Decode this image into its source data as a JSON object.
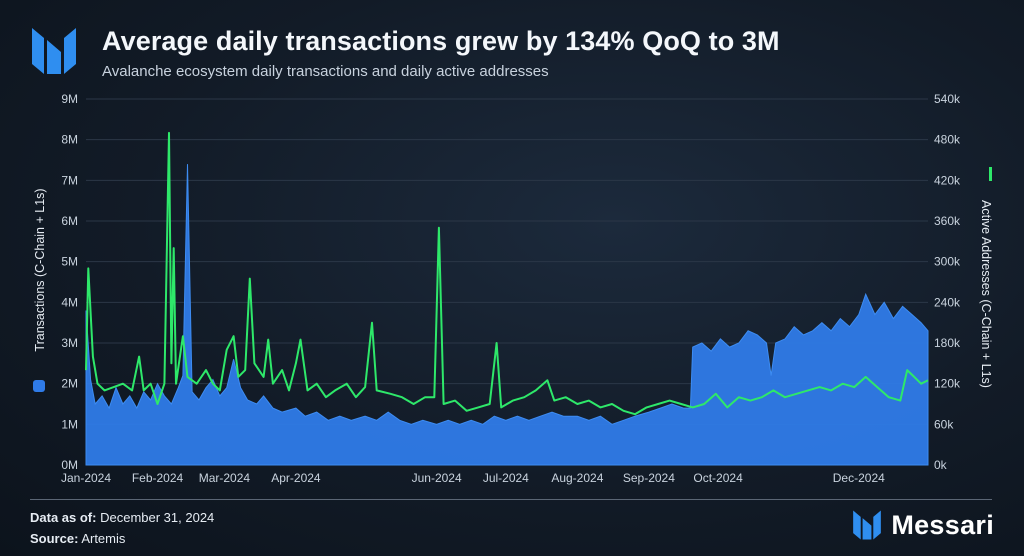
{
  "header": {
    "title": "Average daily transactions grew by 134% QoQ to 3M",
    "subtitle": "Avalanche ecosystem daily transactions and daily active addresses"
  },
  "footer": {
    "data_as_of_label": "Data as of:",
    "data_as_of_value": "December 31, 2024",
    "source_label": "Source:",
    "source_value": "Artemis",
    "brand": "Messari"
  },
  "colors": {
    "transactions": "#2f7be8",
    "active_addresses": "#2ee86a",
    "brand_blue": "#2f8ef0"
  },
  "chart_data": {
    "type": "area",
    "title": "Average daily transactions grew by 134% QoQ to 3M",
    "subtitle": "Avalanche ecosystem daily transactions and daily active addresses",
    "x_tick_labels": [
      "Jan-2024",
      "Feb-2024",
      "Mar-2024",
      "Apr-2024",
      "Jun-2024",
      "Jul-2024",
      "Aug-2024",
      "Sep-2024",
      "Oct-2024",
      "Dec-2024"
    ],
    "x_tick_dates": [
      "2024-01-01",
      "2024-02-01",
      "2024-03-01",
      "2024-04-01",
      "2024-06-01",
      "2024-07-01",
      "2024-08-01",
      "2024-09-01",
      "2024-10-01",
      "2024-12-01"
    ],
    "x_range": [
      "2024-01-01",
      "2024-12-31"
    ],
    "y_left": {
      "label": "Transactions (C-Chain + L1s)",
      "range": [
        0,
        9000000
      ],
      "tick_labels": [
        "0M",
        "1M",
        "2M",
        "3M",
        "4M",
        "5M",
        "6M",
        "7M",
        "8M",
        "9M"
      ]
    },
    "y_right": {
      "label": "Active Addresses (C-Chain + L1s)",
      "range": [
        0,
        540000
      ],
      "tick_labels": [
        "0k",
        "60k",
        "120k",
        "180k",
        "240k",
        "300k",
        "360k",
        "420k",
        "480k",
        "540k"
      ]
    },
    "grid": true,
    "series": [
      {
        "name": "Transactions (C-Chain + L1s)",
        "axis": "left",
        "style": "area",
        "points": [
          [
            "2024-01-01",
            3800000
          ],
          [
            "2024-01-03",
            2100000
          ],
          [
            "2024-01-05",
            1500000
          ],
          [
            "2024-01-08",
            1700000
          ],
          [
            "2024-01-11",
            1400000
          ],
          [
            "2024-01-14",
            1900000
          ],
          [
            "2024-01-17",
            1500000
          ],
          [
            "2024-01-20",
            1700000
          ],
          [
            "2024-01-23",
            1400000
          ],
          [
            "2024-01-26",
            1800000
          ],
          [
            "2024-01-29",
            1600000
          ],
          [
            "2024-02-01",
            2000000
          ],
          [
            "2024-02-04",
            1700000
          ],
          [
            "2024-02-07",
            1500000
          ],
          [
            "2024-02-10",
            1900000
          ],
          [
            "2024-02-12",
            2200000
          ],
          [
            "2024-02-14",
            7400000
          ],
          [
            "2024-02-16",
            1800000
          ],
          [
            "2024-02-19",
            1600000
          ],
          [
            "2024-02-22",
            1900000
          ],
          [
            "2024-02-25",
            2100000
          ],
          [
            "2024-02-28",
            1700000
          ],
          [
            "2024-03-02",
            1900000
          ],
          [
            "2024-03-05",
            2600000
          ],
          [
            "2024-03-08",
            1900000
          ],
          [
            "2024-03-11",
            1600000
          ],
          [
            "2024-03-15",
            1500000
          ],
          [
            "2024-03-18",
            1700000
          ],
          [
            "2024-03-22",
            1400000
          ],
          [
            "2024-03-26",
            1300000
          ],
          [
            "2024-04-01",
            1400000
          ],
          [
            "2024-04-05",
            1200000
          ],
          [
            "2024-04-10",
            1300000
          ],
          [
            "2024-04-15",
            1100000
          ],
          [
            "2024-04-20",
            1200000
          ],
          [
            "2024-04-25",
            1100000
          ],
          [
            "2024-05-01",
            1200000
          ],
          [
            "2024-05-06",
            1100000
          ],
          [
            "2024-05-11",
            1300000
          ],
          [
            "2024-05-16",
            1100000
          ],
          [
            "2024-05-21",
            1000000
          ],
          [
            "2024-05-26",
            1100000
          ],
          [
            "2024-06-01",
            1000000
          ],
          [
            "2024-06-06",
            1100000
          ],
          [
            "2024-06-11",
            1000000
          ],
          [
            "2024-06-16",
            1100000
          ],
          [
            "2024-06-21",
            1000000
          ],
          [
            "2024-06-26",
            1200000
          ],
          [
            "2024-07-01",
            1100000
          ],
          [
            "2024-07-06",
            1200000
          ],
          [
            "2024-07-11",
            1100000
          ],
          [
            "2024-07-16",
            1200000
          ],
          [
            "2024-07-21",
            1300000
          ],
          [
            "2024-07-26",
            1200000
          ],
          [
            "2024-08-01",
            1200000
          ],
          [
            "2024-08-06",
            1100000
          ],
          [
            "2024-08-11",
            1200000
          ],
          [
            "2024-08-16",
            1000000
          ],
          [
            "2024-08-21",
            1100000
          ],
          [
            "2024-08-26",
            1200000
          ],
          [
            "2024-09-01",
            1300000
          ],
          [
            "2024-09-06",
            1400000
          ],
          [
            "2024-09-11",
            1500000
          ],
          [
            "2024-09-16",
            1400000
          ],
          [
            "2024-09-19",
            1400000
          ],
          [
            "2024-09-20",
            2900000
          ],
          [
            "2024-09-24",
            3000000
          ],
          [
            "2024-09-28",
            2800000
          ],
          [
            "2024-10-02",
            3100000
          ],
          [
            "2024-10-06",
            2900000
          ],
          [
            "2024-10-10",
            3000000
          ],
          [
            "2024-10-14",
            3300000
          ],
          [
            "2024-10-18",
            3200000
          ],
          [
            "2024-10-22",
            3000000
          ],
          [
            "2024-10-24",
            2200000
          ],
          [
            "2024-10-26",
            3000000
          ],
          [
            "2024-10-30",
            3100000
          ],
          [
            "2024-11-03",
            3400000
          ],
          [
            "2024-11-07",
            3200000
          ],
          [
            "2024-11-11",
            3300000
          ],
          [
            "2024-11-15",
            3500000
          ],
          [
            "2024-11-19",
            3300000
          ],
          [
            "2024-11-23",
            3600000
          ],
          [
            "2024-11-27",
            3400000
          ],
          [
            "2024-12-01",
            3700000
          ],
          [
            "2024-12-04",
            4200000
          ],
          [
            "2024-12-08",
            3700000
          ],
          [
            "2024-12-12",
            4000000
          ],
          [
            "2024-12-16",
            3600000
          ],
          [
            "2024-12-20",
            3900000
          ],
          [
            "2024-12-24",
            3700000
          ],
          [
            "2024-12-28",
            3500000
          ],
          [
            "2024-12-31",
            3300000
          ]
        ]
      },
      {
        "name": "Active Addresses (C-Chain + L1s)",
        "axis": "right",
        "style": "line",
        "points": [
          [
            "2024-01-01",
            140000
          ],
          [
            "2024-01-02",
            290000
          ],
          [
            "2024-01-04",
            160000
          ],
          [
            "2024-01-06",
            120000
          ],
          [
            "2024-01-09",
            110000
          ],
          [
            "2024-01-13",
            115000
          ],
          [
            "2024-01-17",
            120000
          ],
          [
            "2024-01-21",
            110000
          ],
          [
            "2024-01-24",
            160000
          ],
          [
            "2024-01-26",
            110000
          ],
          [
            "2024-01-29",
            120000
          ],
          [
            "2024-02-01",
            90000
          ],
          [
            "2024-02-04",
            120000
          ],
          [
            "2024-02-06",
            490000
          ],
          [
            "2024-02-07",
            150000
          ],
          [
            "2024-02-08",
            320000
          ],
          [
            "2024-02-09",
            120000
          ],
          [
            "2024-02-12",
            190000
          ],
          [
            "2024-02-14",
            130000
          ],
          [
            "2024-02-18",
            120000
          ],
          [
            "2024-02-22",
            140000
          ],
          [
            "2024-02-25",
            120000
          ],
          [
            "2024-02-28",
            110000
          ],
          [
            "2024-03-02",
            170000
          ],
          [
            "2024-03-05",
            190000
          ],
          [
            "2024-03-07",
            130000
          ],
          [
            "2024-03-10",
            140000
          ],
          [
            "2024-03-12",
            275000
          ],
          [
            "2024-03-14",
            150000
          ],
          [
            "2024-03-18",
            130000
          ],
          [
            "2024-03-20",
            185000
          ],
          [
            "2024-03-22",
            120000
          ],
          [
            "2024-03-26",
            140000
          ],
          [
            "2024-03-29",
            110000
          ],
          [
            "2024-04-01",
            150000
          ],
          [
            "2024-04-03",
            185000
          ],
          [
            "2024-04-06",
            110000
          ],
          [
            "2024-04-10",
            120000
          ],
          [
            "2024-04-14",
            100000
          ],
          [
            "2024-04-18",
            110000
          ],
          [
            "2024-04-23",
            120000
          ],
          [
            "2024-04-27",
            100000
          ],
          [
            "2024-05-01",
            115000
          ],
          [
            "2024-05-04",
            210000
          ],
          [
            "2024-05-06",
            110000
          ],
          [
            "2024-05-12",
            105000
          ],
          [
            "2024-05-17",
            100000
          ],
          [
            "2024-05-22",
            90000
          ],
          [
            "2024-05-27",
            100000
          ],
          [
            "2024-05-31",
            100000
          ],
          [
            "2024-06-02",
            350000
          ],
          [
            "2024-06-04",
            90000
          ],
          [
            "2024-06-09",
            95000
          ],
          [
            "2024-06-14",
            80000
          ],
          [
            "2024-06-19",
            85000
          ],
          [
            "2024-06-24",
            90000
          ],
          [
            "2024-06-27",
            180000
          ],
          [
            "2024-06-29",
            85000
          ],
          [
            "2024-07-04",
            95000
          ],
          [
            "2024-07-09",
            100000
          ],
          [
            "2024-07-14",
            110000
          ],
          [
            "2024-07-19",
            125000
          ],
          [
            "2024-07-22",
            95000
          ],
          [
            "2024-07-27",
            100000
          ],
          [
            "2024-08-01",
            90000
          ],
          [
            "2024-08-06",
            95000
          ],
          [
            "2024-08-11",
            85000
          ],
          [
            "2024-08-16",
            90000
          ],
          [
            "2024-08-21",
            80000
          ],
          [
            "2024-08-26",
            75000
          ],
          [
            "2024-08-31",
            85000
          ],
          [
            "2024-09-05",
            90000
          ],
          [
            "2024-09-10",
            95000
          ],
          [
            "2024-09-15",
            90000
          ],
          [
            "2024-09-20",
            85000
          ],
          [
            "2024-09-25",
            90000
          ],
          [
            "2024-09-30",
            105000
          ],
          [
            "2024-10-05",
            85000
          ],
          [
            "2024-10-10",
            100000
          ],
          [
            "2024-10-15",
            95000
          ],
          [
            "2024-10-20",
            100000
          ],
          [
            "2024-10-25",
            110000
          ],
          [
            "2024-10-30",
            100000
          ],
          [
            "2024-11-04",
            105000
          ],
          [
            "2024-11-09",
            110000
          ],
          [
            "2024-11-14",
            115000
          ],
          [
            "2024-11-19",
            110000
          ],
          [
            "2024-11-24",
            120000
          ],
          [
            "2024-11-29",
            115000
          ],
          [
            "2024-12-04",
            130000
          ],
          [
            "2024-12-09",
            115000
          ],
          [
            "2024-12-14",
            100000
          ],
          [
            "2024-12-19",
            95000
          ],
          [
            "2024-12-22",
            140000
          ],
          [
            "2024-12-25",
            130000
          ],
          [
            "2024-12-28",
            120000
          ],
          [
            "2024-12-31",
            125000
          ]
        ]
      }
    ]
  }
}
